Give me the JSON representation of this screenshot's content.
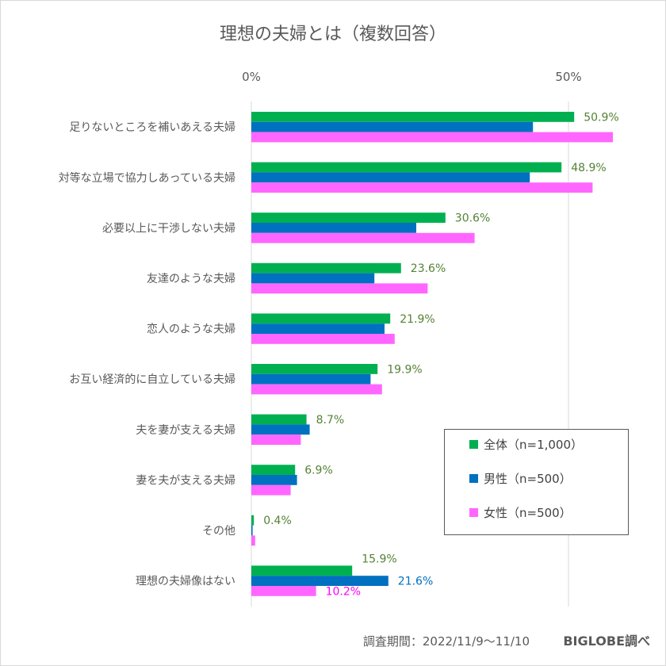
{
  "chart_data": {
    "type": "bar",
    "orientation": "horizontal",
    "title": "理想の夫婦とは（複数回答）",
    "xlim": [
      0,
      60
    ],
    "x_ticks": [
      {
        "value": 0,
        "label": "0%"
      },
      {
        "value": 50,
        "label": "50%"
      }
    ],
    "grid": true,
    "legend_position": "bottom-right",
    "categories": [
      "足りないところを補いあえる夫婦",
      "対等な立場で協力しあっている夫婦",
      "必要以上に干渉しない夫婦",
      "友達のような夫婦",
      "恋人のような夫婦",
      "お互い経済的に自立している夫婦",
      "夫を妻が支える夫婦",
      "妻を夫が支える夫婦",
      "その他",
      "理想の夫婦像はない"
    ],
    "series": [
      {
        "name": "全体（n=1,000）",
        "color": "#00b050",
        "label_color": "#548235",
        "values": [
          50.9,
          48.9,
          30.6,
          23.6,
          21.9,
          19.9,
          8.7,
          6.9,
          0.4,
          15.9
        ],
        "labels": [
          "50.9%",
          "48.9%",
          "30.6%",
          "23.6%",
          "21.9%",
          "19.9%",
          "8.7%",
          "6.9%",
          "0.4%",
          "15.9%"
        ]
      },
      {
        "name": "男性（n=500）",
        "color": "#0070c0",
        "label_color": "#0070c0",
        "values": [
          44.4,
          43.9,
          26.0,
          19.4,
          21.0,
          18.8,
          9.2,
          7.2,
          0.2,
          21.6
        ],
        "labels": [
          null,
          null,
          null,
          null,
          null,
          null,
          null,
          null,
          null,
          "21.6%"
        ]
      },
      {
        "name": "女性（n=500）",
        "color": "#ff66ff",
        "label_color": "#ff00ff",
        "values": [
          57.0,
          53.8,
          35.2,
          27.8,
          22.6,
          20.6,
          7.8,
          6.2,
          0.6,
          10.2
        ],
        "labels": [
          null,
          null,
          null,
          null,
          null,
          null,
          null,
          null,
          null,
          "10.2%"
        ]
      }
    ]
  },
  "footer": {
    "period": "調査期間：2022/11/9～11/10",
    "source": "BIGLOBE調べ"
  }
}
